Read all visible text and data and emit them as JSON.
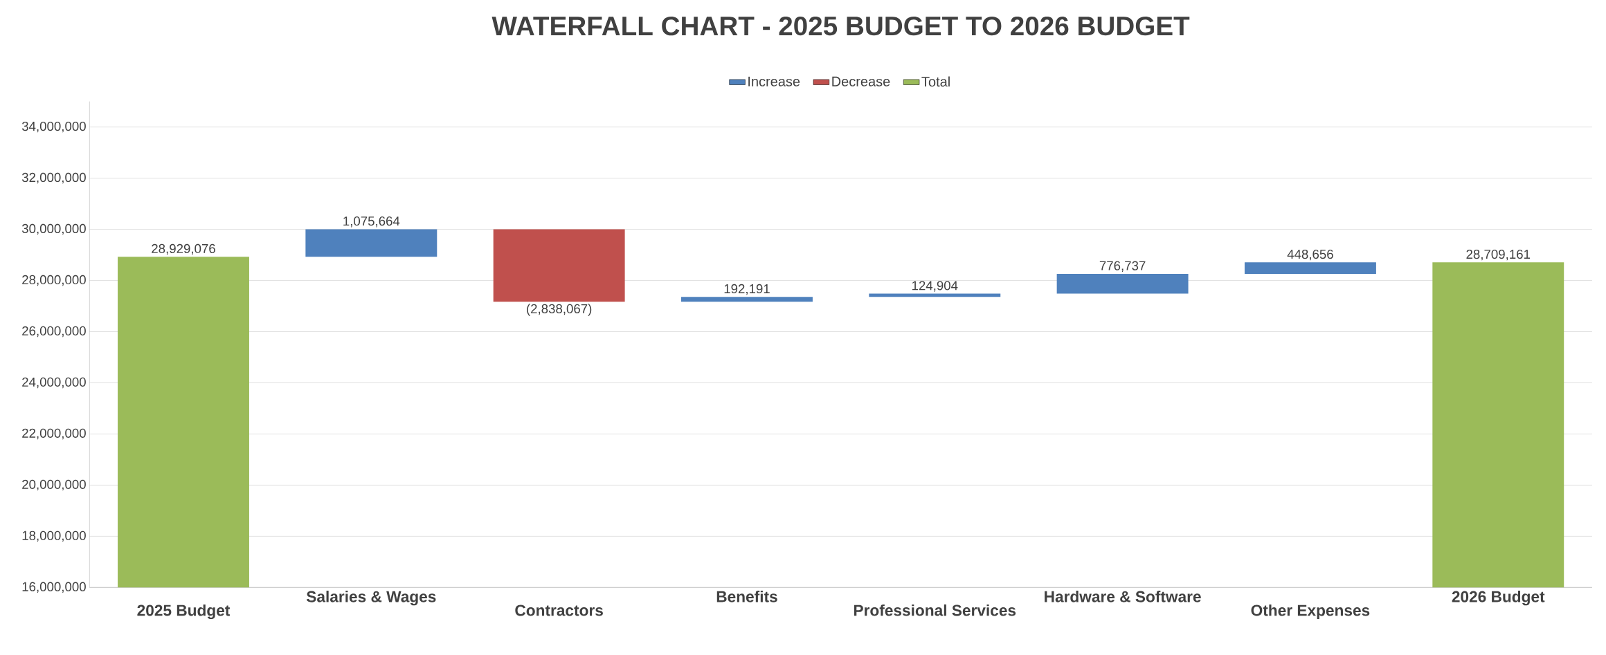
{
  "chart_data": {
    "type": "bar",
    "title": "WATERFALL CHART - 2025 BUDGET TO 2026 BUDGET",
    "categories": [
      "2025 Budget",
      "Salaries & Wages",
      "Contractors",
      "Benefits",
      "Professional Services",
      "Hardware & Software",
      "Other Expenses",
      "2026 Budget"
    ],
    "series": [
      {
        "name": "Increase",
        "color": "#4f81bd",
        "values": [
          null,
          1075664,
          null,
          192191,
          124904,
          776737,
          448656,
          null
        ],
        "base": [
          null,
          28929076,
          null,
          27166673,
          27358864,
          27483768,
          28260505,
          null
        ],
        "value_labels": [
          null,
          "1,075,664",
          null,
          "192,191",
          "124,904",
          "776,737",
          "448,656",
          null
        ]
      },
      {
        "name": "Decrease",
        "color": "#c0504d",
        "values": [
          null,
          null,
          -2838067,
          null,
          null,
          null,
          null,
          null
        ],
        "base": [
          null,
          null,
          30004740,
          null,
          null,
          null,
          null,
          null
        ],
        "value_labels": [
          null,
          null,
          "(2,838,067)",
          null,
          null,
          null,
          null,
          null
        ]
      },
      {
        "name": "Total",
        "color": "#9bbb59",
        "values": [
          28929076,
          null,
          null,
          null,
          null,
          null,
          null,
          28709161
        ],
        "value_labels": [
          "28,929,076",
          null,
          null,
          null,
          null,
          null,
          null,
          "28,709,161"
        ]
      }
    ],
    "ylim": [
      16000000,
      35000000
    ],
    "yticks": [
      {
        "value": 16000000,
        "label": "16,000,000"
      },
      {
        "value": 18000000,
        "label": "18,000,000"
      },
      {
        "value": 20000000,
        "label": "20,000,000"
      },
      {
        "value": 22000000,
        "label": "22,000,000"
      },
      {
        "value": 24000000,
        "label": "24,000,000"
      },
      {
        "value": 26000000,
        "label": "26,000,000"
      },
      {
        "value": 28000000,
        "label": "28,000,000"
      },
      {
        "value": 30000000,
        "label": "30,000,000"
      },
      {
        "value": 32000000,
        "label": "32,000,000"
      },
      {
        "value": 34000000,
        "label": "34,000,000"
      }
    ],
    "grid": "y",
    "legend": "top"
  }
}
